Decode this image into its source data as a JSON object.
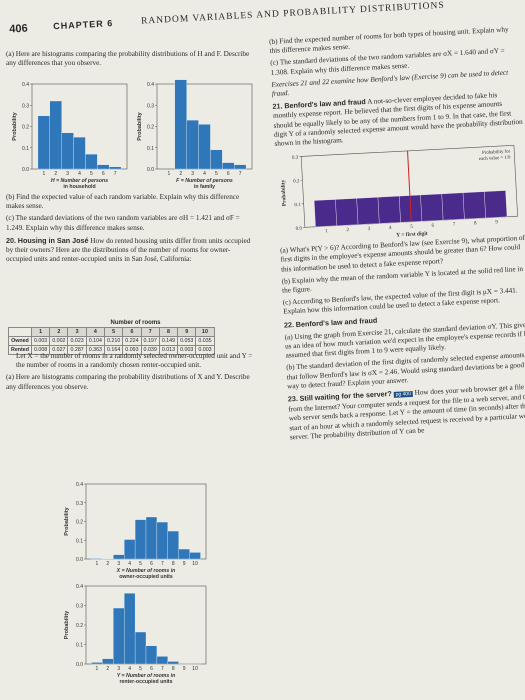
{
  "header": {
    "page_number": "406",
    "chapter": "CHAPTER 6",
    "title": "RANDOM VARIABLES AND PROBABILITY DISTRIBUTIONS"
  },
  "left": {
    "part_a": "(a) Here are histograms comparing the probability distributions of H and F. Describe any differences that you observe.",
    "part_b": "(b) Find the expected value of each random variable. Explain why this difference makes sense.",
    "part_c": "(c) The standard deviations of the two random variables are σH = 1.421 and σF = 1.249. Explain why this difference makes sense.",
    "ex20_num": "20.",
    "ex20_title": "Housing in San José",
    "ex20_text": " How do rented housing units differ from units occupied by their owners? Here are the distributions of the number of rooms for owner-occupied units and renter-occupied units in San José, California:",
    "let_text": "Let X = the number of rooms in a randomly selected owner-occupied unit and Y = the number of rooms in a randomly chosen renter-occupied unit.",
    "part_a2": "(a) Here are histograms comparing the probability distributions of X and Y. Describe any differences you observe."
  },
  "table": {
    "title": "Number of rooms",
    "cols": [
      "1",
      "2",
      "3",
      "4",
      "5",
      "6",
      "7",
      "8",
      "9",
      "10"
    ],
    "rows": [
      {
        "label": "Owned",
        "values": [
          "0.003",
          "0.002",
          "0.023",
          "0.104",
          "0.210",
          "0.224",
          "0.197",
          "0.149",
          "0.053",
          "0.035"
        ]
      },
      {
        "label": "Rented",
        "values": [
          "0.008",
          "0.027",
          "0.287",
          "0.363",
          "0.164",
          "0.093",
          "0.039",
          "0.013",
          "0.003",
          "0.003"
        ]
      }
    ]
  },
  "charts": {
    "ylabel_prob": "Probability",
    "H_xlabel_1": "H = Number of persons",
    "H_xlabel_2": "in household",
    "F_xlabel_1": "F = Number of persons",
    "F_xlabel_2": "in family",
    "X_xlabel_1": "X = Number of rooms in",
    "X_xlabel_2": "owner-occupied units",
    "Y_xlabel_1": "Y = Number of rooms in",
    "Y_xlabel_2": "renter-occupied units",
    "benford_xlabel": "Y = first digit",
    "benford_legend_1": "Probability for",
    "benford_legend_2": "each value = 1/9",
    "yticks_04": [
      "0.0",
      "0.1",
      "0.2",
      "0.3",
      "0.4"
    ]
  },
  "chart_data": [
    {
      "type": "bar",
      "categories": [
        "1",
        "2",
        "3",
        "4",
        "5",
        "6",
        "7"
      ],
      "values": [
        0.25,
        0.32,
        0.17,
        0.15,
        0.07,
        0.02,
        0.01
      ],
      "xlabel": "H = Number of persons in household",
      "ylabel": "Probability",
      "ylim": [
        0,
        0.4
      ]
    },
    {
      "type": "bar",
      "categories": [
        "1",
        "2",
        "3",
        "4",
        "5",
        "6",
        "7"
      ],
      "values": [
        0,
        0.42,
        0.23,
        0.21,
        0.09,
        0.03,
        0.02
      ],
      "xlabel": "F = Number of persons in family",
      "ylabel": "Probability",
      "ylim": [
        0,
        0.4
      ]
    },
    {
      "type": "bar",
      "categories": [
        "1",
        "2",
        "3",
        "4",
        "5",
        "6",
        "7",
        "8",
        "9",
        "10"
      ],
      "values": [
        0.003,
        0.002,
        0.023,
        0.104,
        0.21,
        0.224,
        0.197,
        0.149,
        0.053,
        0.035
      ],
      "xlabel": "X = Number of rooms in owner-occupied units",
      "ylabel": "Probability",
      "ylim": [
        0,
        0.4
      ]
    },
    {
      "type": "bar",
      "categories": [
        "1",
        "2",
        "3",
        "4",
        "5",
        "6",
        "7",
        "8",
        "9",
        "10"
      ],
      "values": [
        0.008,
        0.027,
        0.287,
        0.363,
        0.164,
        0.093,
        0.039,
        0.013,
        0.003,
        0.003
      ],
      "xlabel": "Y = Number of rooms in renter-occupied units",
      "ylabel": "Probability",
      "ylim": [
        0,
        0.4
      ]
    },
    {
      "type": "bar",
      "categories": [
        "1",
        "2",
        "3",
        "4",
        "5",
        "6",
        "7",
        "8",
        "9"
      ],
      "values": [
        0.111,
        0.111,
        0.111,
        0.111,
        0.111,
        0.111,
        0.111,
        0.111,
        0.111
      ],
      "xlabel": "Y = first digit",
      "ylabel": "Probability",
      "ylim": [
        0,
        0.3
      ]
    }
  ],
  "right": {
    "b": "(b) Find the expected number of rooms for both types of housing unit. Explain why this difference makes sense.",
    "c": "(c) The standard deviations of the two random variables are σX = 1.640 and σY = 1.308. Explain why this difference makes sense.",
    "ex_note": "Exercises 21 and 22 examine how Benford's law (Exercise 9) can be used to detect fraud.",
    "ex21_num": "21.",
    "ex21_title": "Benford's law and fraud",
    "ex21_text": " A not-so-clever employee decided to fake his monthly expense report. He believed that the first digits of his expense amounts should be equally likely to be any of the numbers from 1 to 9. In that case, the first digit Y of a randomly selected expense amount would have the probability distribution shown in the histogram.",
    "q21a": "(a) What's P(Y > 6)? According to Benford's law (see Exercise 9), what proportion of first digits in the employee's expense amounts should be greater than 6? How could this information be used to detect a fake expense report?",
    "q21b": "(b) Explain why the mean of the random variable Y is located at the solid red line in the figure.",
    "q21c": "(c) According to Benford's law, the expected value of the first digit is μX = 3.441. Explain how this information could be used to detect a fake expense report.",
    "ex22_num": "22.",
    "ex22_title": "Benford's law and fraud",
    "q22a": "(a) Using the graph from Exercise 21, calculate the standard deviation σY. This gives us an idea of how much variation we'd expect in the employee's expense records if he assumed that first digits from 1 to 9 were equally likely.",
    "q22b": "(b) The standard deviation of the first digits of randomly selected expense amounts that follow Benford's law is σX = 2.46. Would using standard deviations be a good way to detect fraud? Explain your answer.",
    "ex23_num": "23.",
    "ex23_title": "Still waiting for the server?",
    "ex23_badge": "pg 400",
    "ex23_text": " How does your web browser get a file from the Internet? Your computer sends a request for the file to a web server, and the web server sends back a response. Let Y = the amount of time (in seconds) after the start of an hour at which a randomly selected request is received by a particular web server. The probability distribution of Y can be"
  },
  "colors": {
    "bar": "#2f77b8",
    "benford_bar": "#4a2a8a",
    "mean_line": "#cc2222",
    "badge": "#1a4f8a"
  }
}
